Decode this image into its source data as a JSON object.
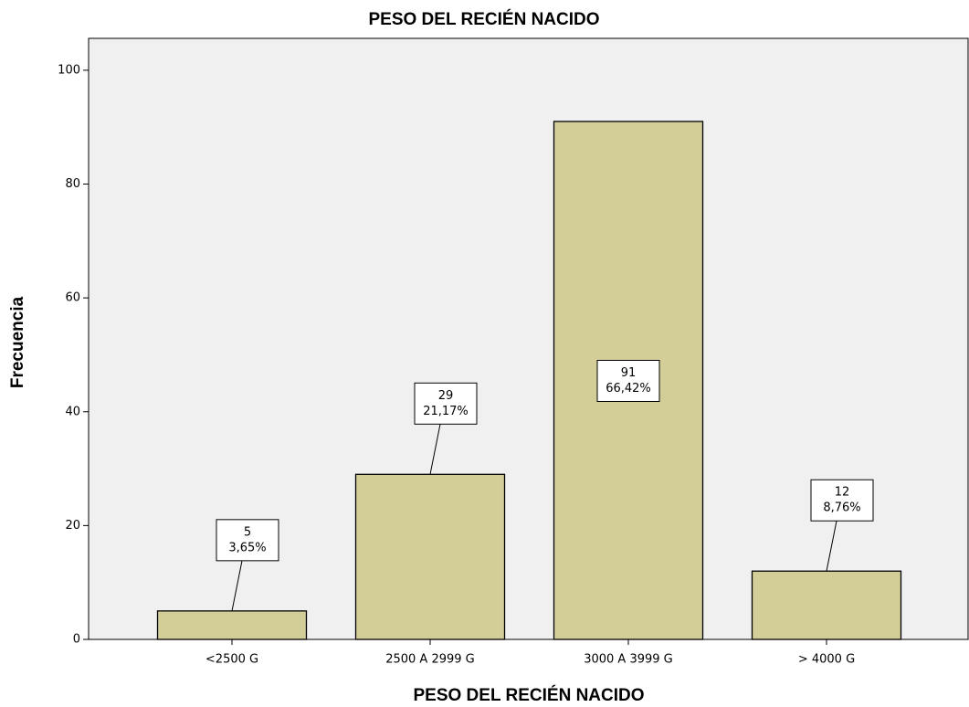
{
  "chart_data": {
    "type": "bar",
    "title": "PESO DEL RECIÉN NACIDO",
    "x_label": "PESO DEL RECIÉN NACIDO",
    "y_label": "Frecuencia",
    "categories": [
      "<2500 G",
      "2500 A 2999 G",
      "3000 A 3999 G",
      "> 4000 G"
    ],
    "values": [
      5,
      29,
      91,
      12
    ],
    "percent_labels": [
      "3,65%",
      "21,17%",
      "66,42%",
      "8,76%"
    ],
    "color": "#d3ce97",
    "ylim": [
      0,
      105.6
    ],
    "yticks": [
      0,
      20,
      40,
      60,
      80,
      100
    ]
  }
}
